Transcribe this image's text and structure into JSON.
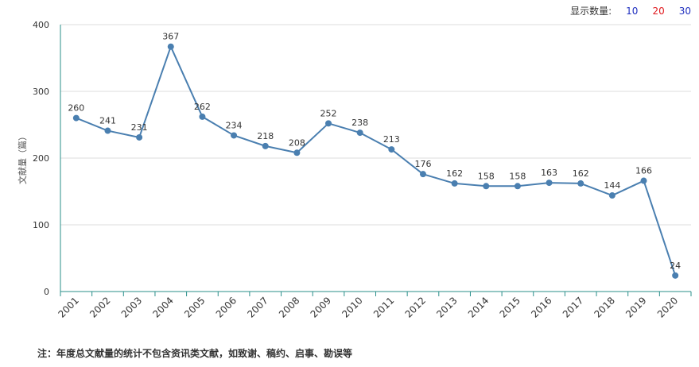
{
  "display_count": {
    "label": "显示数量:",
    "options": [
      "10",
      "20",
      "30"
    ]
  },
  "footnote": "注：年度总文献量的统计不包含资讯类文献，如致谢、稿约、启事、勘误等",
  "colors": {
    "line": "#4a7fb0",
    "axis_line": "#2a8f8a",
    "grid": "#dddddd",
    "option_blue": "#1f2fbf",
    "option_red": "#e0191e"
  },
  "chart_data": {
    "type": "line",
    "title": "",
    "xlabel": "",
    "ylabel": "文献量（篇）",
    "ylim": [
      0,
      400
    ],
    "yticks": [
      0,
      100,
      200,
      300,
      400
    ],
    "grid": true,
    "categories": [
      "2001",
      "2002",
      "2003",
      "2004",
      "2005",
      "2006",
      "2007",
      "2008",
      "2009",
      "2010",
      "2011",
      "2012",
      "2013",
      "2014",
      "2015",
      "2016",
      "2017",
      "2018",
      "2019",
      "2020"
    ],
    "series": [
      {
        "values": [
          260,
          241,
          231,
          367,
          262,
          234,
          218,
          208,
          252,
          238,
          213,
          176,
          162,
          158,
          158,
          163,
          162,
          144,
          166,
          24
        ]
      }
    ]
  }
}
